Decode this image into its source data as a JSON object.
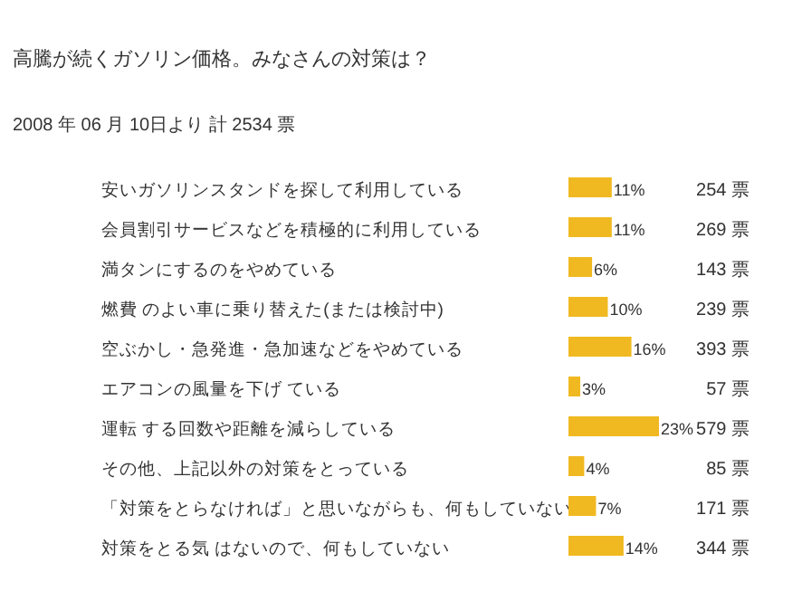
{
  "chart_data": {
    "type": "bar",
    "orientation": "horizontal",
    "title": "高騰が続くガソリン価格。みなさんの対策は？",
    "subtitle": "2008 年 06 月 10日より 計 2534 票",
    "categories": [
      "安いガソリンスタンドを探して利用している",
      "会員割引サービスなどを積極的に利用している",
      "満タンにするのをやめている",
      "燃費 のよい車に乗り替えた(または検討中)",
      "空ぶかし・急発進・急加速などをやめている",
      "エアコンの風量を下げ ている",
      "運転 する回数や距離を減らしている",
      "その他、上記以外の対策をとっている",
      "「対策をとらなければ」と思いながらも、何もしていない",
      "対策をとる気 はないので、何もしていない"
    ],
    "values": [
      11,
      11,
      6,
      10,
      16,
      3,
      23,
      4,
      7,
      14
    ],
    "value_labels": [
      "11%",
      "11%",
      "6%",
      "10%",
      "16%",
      "3%",
      "23%",
      "4%",
      "7%",
      "14%"
    ],
    "color": "#f0b921",
    "annotations": [
      "254 票",
      "269 票",
      "143 票",
      "239 票",
      "393 票",
      "57 票",
      "579 票",
      "85 票",
      "171 票",
      "344 票"
    ]
  }
}
